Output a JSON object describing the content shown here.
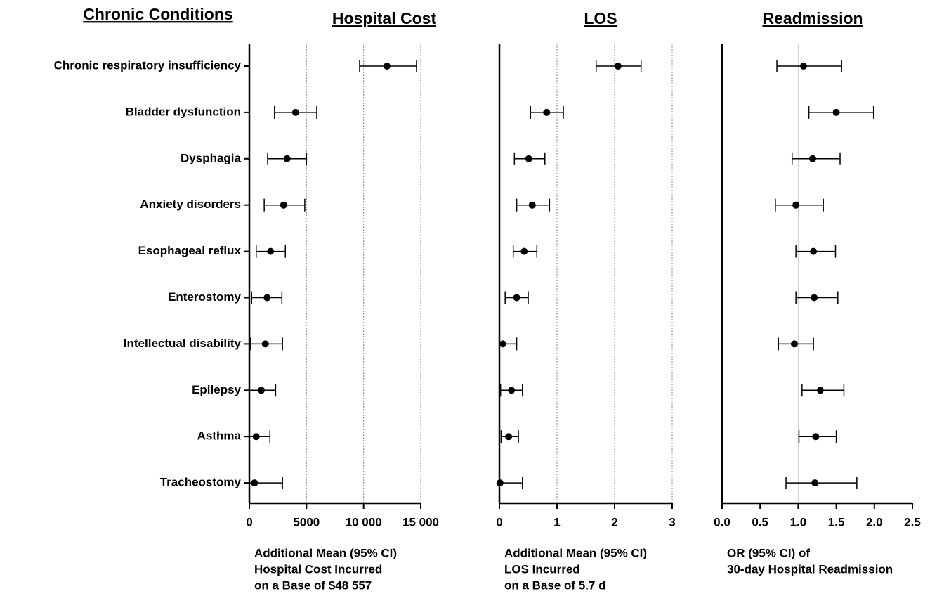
{
  "chart_data": [
    {
      "type": "forest",
      "title": "Hospital Cost",
      "y_label": "Chronic Conditions",
      "categories": [
        "Chronic respiratory insufficiency",
        "Bladder dysfunction",
        "Dysphagia",
        "Anxiety disorders",
        "Esophageal reflux",
        "Enterostomy",
        "Intellectual disability",
        "Epilepsy",
        "Asthma",
        "Tracheostomy"
      ],
      "values": [
        12050,
        4050,
        3300,
        3000,
        1850,
        1550,
        1400,
        1050,
        600,
        450
      ],
      "lower": [
        9650,
        2200,
        1600,
        1300,
        600,
        200,
        100,
        0,
        0,
        0
      ],
      "upper": [
        14630,
        5900,
        5000,
        4850,
        3150,
        2850,
        2900,
        2300,
        1800,
        2900
      ],
      "color": "#000000",
      "xlim": [
        0,
        15000
      ],
      "xticks": [
        0,
        5000,
        {
          "value": 10000,
          "label": "10 000"
        },
        {
          "value": 15000,
          "label": "15 000"
        }
      ],
      "grid": true,
      "x_label": [
        "Additional Mean (95% CI)",
        "Hospital Cost Incurred",
        "on a Base of $48 557"
      ]
    },
    {
      "type": "forest",
      "title": "LOS",
      "values": [
        2.06,
        0.82,
        0.51,
        0.57,
        0.43,
        0.3,
        0.06,
        0.21,
        0.16,
        0.01
      ],
      "lower": [
        1.68,
        0.54,
        0.26,
        0.3,
        0.24,
        0.1,
        0.0,
        0.02,
        0.03,
        0.0
      ],
      "upper": [
        2.46,
        1.11,
        0.79,
        0.87,
        0.65,
        0.5,
        0.3,
        0.4,
        0.33,
        0.4
      ],
      "color": "#000000",
      "xlim": [
        0,
        3
      ],
      "xticks": [
        0,
        1,
        2,
        3
      ],
      "grid": true,
      "x_label": [
        "Additional Mean (95% CI)",
        "LOS Incurred",
        "on a Base of 5.7 d"
      ]
    },
    {
      "type": "forest",
      "title": "Readmission",
      "values": [
        1.07,
        1.5,
        1.19,
        0.97,
        1.2,
        1.21,
        0.95,
        1.29,
        1.23,
        1.22
      ],
      "lower": [
        0.72,
        1.14,
        0.92,
        0.7,
        0.97,
        0.97,
        0.74,
        1.05,
        1.01,
        0.84
      ],
      "upper": [
        1.57,
        1.99,
        1.55,
        1.33,
        1.49,
        1.52,
        1.2,
        1.6,
        1.5,
        1.77
      ],
      "color": "#000000",
      "xlim": [
        0,
        2.5
      ],
      "xticks": [
        {
          "value": 0,
          "label": "0.0"
        },
        0.5,
        {
          "value": 1,
          "label": "1.0"
        },
        1.5,
        {
          "value": 2,
          "label": "2.0"
        },
        2.5
      ],
      "grid": false,
      "reference": 1,
      "x_label": [
        "OR (95% CI) of",
        "30-day Hospital Readmission"
      ]
    }
  ]
}
